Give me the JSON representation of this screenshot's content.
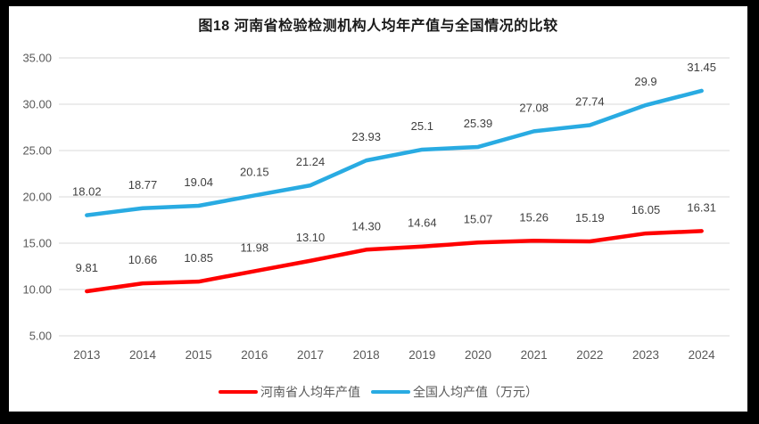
{
  "window": {
    "frame_color": "#000000",
    "panel_color": "#ffffff"
  },
  "chart_data": {
    "type": "line",
    "title": "图18  河南省检验检测机构人均年产值与全国情况的比较",
    "categories": [
      "2013",
      "2014",
      "2015",
      "2016",
      "2017",
      "2018",
      "2019",
      "2020",
      "2021",
      "2022",
      "2023",
      "2024"
    ],
    "series": [
      {
        "name": "河南省人均年产值",
        "color": "#ff0000",
        "values": [
          9.81,
          10.66,
          10.85,
          11.98,
          13.1,
          14.3,
          14.64,
          15.07,
          15.26,
          15.19,
          16.05,
          16.31
        ],
        "labels": [
          "9.81",
          "10.66",
          "10.85",
          "11.98",
          "13.10",
          "14.30",
          "14.64",
          "15.07",
          "15.26",
          "15.19",
          "16.05",
          "16.31"
        ]
      },
      {
        "name": "全国人均产值（万元）",
        "color": "#29abe2",
        "values": [
          18.02,
          18.77,
          19.04,
          20.15,
          21.24,
          23.93,
          25.1,
          25.39,
          27.08,
          27.74,
          29.9,
          31.45
        ],
        "labels": [
          "18.02",
          "18.77",
          "19.04",
          "20.15",
          "21.24",
          "23.93",
          "25.1",
          "25.39",
          "27.08",
          "27.74",
          "29.9",
          "31.45"
        ]
      }
    ],
    "y_axis": {
      "min": 5,
      "max": 35,
      "step": 5,
      "tick_labels": [
        "5.00",
        "10.00",
        "15.00",
        "20.00",
        "25.00",
        "30.00",
        "35.00"
      ]
    },
    "x_axis": {
      "label": ""
    },
    "grid": "horizontal-only",
    "legend_position": "bottom",
    "colors": {
      "gridline": "#d9d9d9",
      "axis_text": "#595959",
      "data_label_text": "#404040",
      "title_text": "#1a1a1a"
    }
  }
}
